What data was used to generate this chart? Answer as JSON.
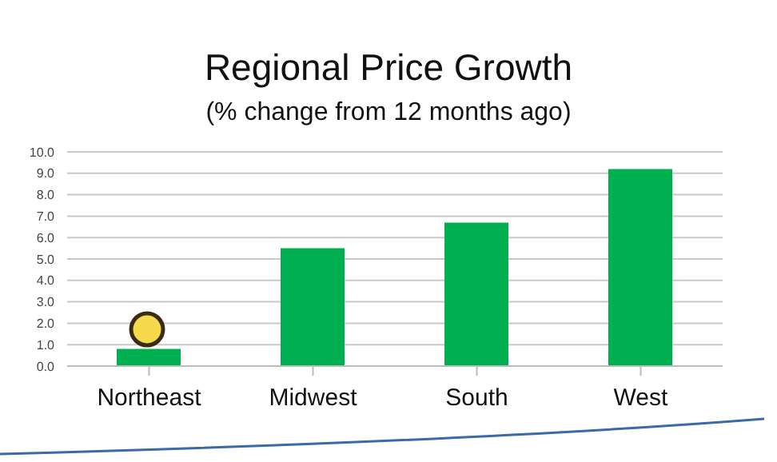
{
  "chart_data": {
    "type": "bar",
    "title": "Regional Price Growth",
    "subtitle": "(% change from 12 months ago)",
    "categories": [
      "Northeast",
      "Midwest",
      "South",
      "West"
    ],
    "values": [
      0.8,
      5.5,
      6.7,
      9.2
    ],
    "color": "#00b050",
    "ylim": [
      0,
      10
    ],
    "yticks": [
      {
        "value": 0,
        "label": "0.0"
      },
      {
        "value": 1,
        "label": "1.0"
      },
      {
        "value": 2,
        "label": "2.0"
      },
      {
        "value": 3,
        "label": "3.0"
      },
      {
        "value": 4,
        "label": "4.0"
      },
      {
        "value": 5,
        "label": "5.0"
      },
      {
        "value": 6,
        "label": "6.0"
      },
      {
        "value": 7,
        "label": "7.0"
      },
      {
        "value": 8,
        "label": "8.0"
      },
      {
        "value": 9,
        "label": "9.0"
      },
      {
        "value": 10,
        "label": "10.0"
      }
    ],
    "grid": "y",
    "legend": false
  }
}
